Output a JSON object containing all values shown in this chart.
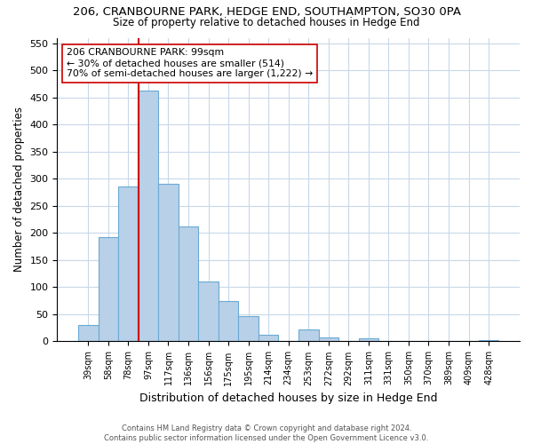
{
  "title_line1": "206, CRANBOURNE PARK, HEDGE END, SOUTHAMPTON, SO30 0PA",
  "title_line2": "Size of property relative to detached houses in Hedge End",
  "xlabel": "Distribution of detached houses by size in Hedge End",
  "ylabel": "Number of detached properties",
  "bin_labels": [
    "39sqm",
    "58sqm",
    "78sqm",
    "97sqm",
    "117sqm",
    "136sqm",
    "156sqm",
    "175sqm",
    "195sqm",
    "214sqm",
    "234sqm",
    "253sqm",
    "272sqm",
    "292sqm",
    "311sqm",
    "331sqm",
    "350sqm",
    "370sqm",
    "389sqm",
    "409sqm",
    "428sqm"
  ],
  "bin_values": [
    30,
    192,
    285,
    462,
    290,
    212,
    110,
    74,
    46,
    13,
    0,
    22,
    8,
    0,
    5,
    0,
    0,
    0,
    0,
    0,
    3
  ],
  "bar_color": "#b8d0e8",
  "bar_edge_color": "#6aaad4",
  "property_line_index": 3,
  "property_line_color": "#cc0000",
  "annotation_line1": "206 CRANBOURNE PARK: 99sqm",
  "annotation_line2": "← 30% of detached houses are smaller (514)",
  "annotation_line3": "70% of semi-detached houses are larger (1,222) →",
  "annotation_box_color": "#ffffff",
  "annotation_box_edge": "#cc0000",
  "ylim": [
    0,
    560
  ],
  "yticks": [
    0,
    50,
    100,
    150,
    200,
    250,
    300,
    350,
    400,
    450,
    500,
    550
  ],
  "footer_line1": "Contains HM Land Registry data © Crown copyright and database right 2024.",
  "footer_line2": "Contains public sector information licensed under the Open Government Licence v3.0.",
  "background_color": "#ffffff",
  "grid_color": "#c8d8e8"
}
